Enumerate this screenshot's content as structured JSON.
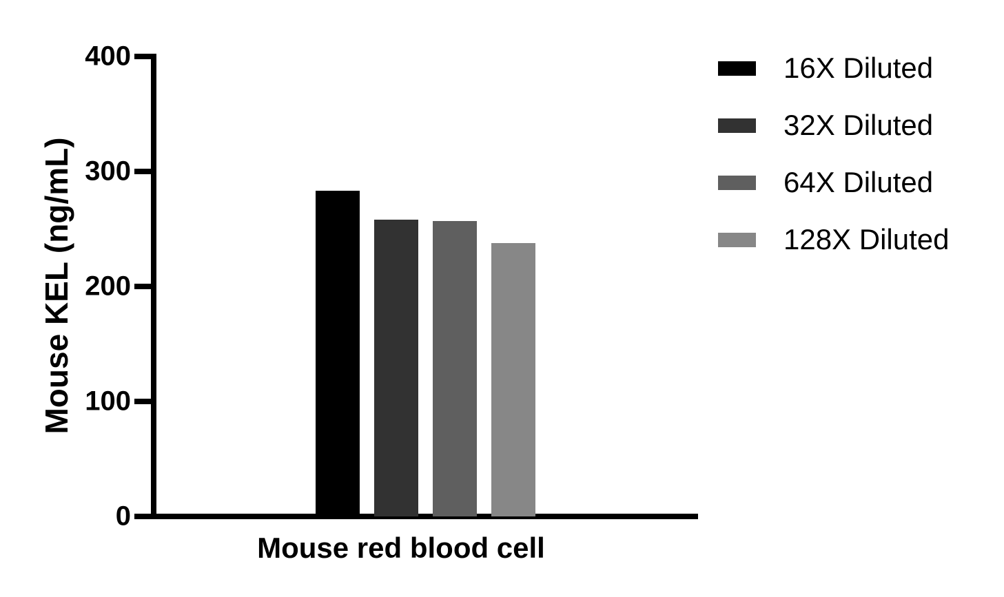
{
  "chart_data": {
    "type": "bar",
    "title": "",
    "xlabel": "Mouse red blood cell",
    "ylabel": "Mouse KEL (ng/mL)",
    "ylim": [
      0,
      400
    ],
    "yticks": [
      0,
      100,
      200,
      300,
      400
    ],
    "grid": false,
    "legend_position": "right",
    "categories": [
      "Mouse red blood cell"
    ],
    "series": [
      {
        "name": "16X Diluted",
        "values": [
          283
        ],
        "color": "#000000"
      },
      {
        "name": "32X Diluted",
        "values": [
          258
        ],
        "color": "#323232"
      },
      {
        "name": "64X Diluted",
        "values": [
          257
        ],
        "color": "#5f5f5f"
      },
      {
        "name": "128X Diluted",
        "values": [
          238
        ],
        "color": "#878787"
      }
    ]
  },
  "colors": {
    "axis": "#000000",
    "text": "#000000",
    "background": "#ffffff"
  }
}
